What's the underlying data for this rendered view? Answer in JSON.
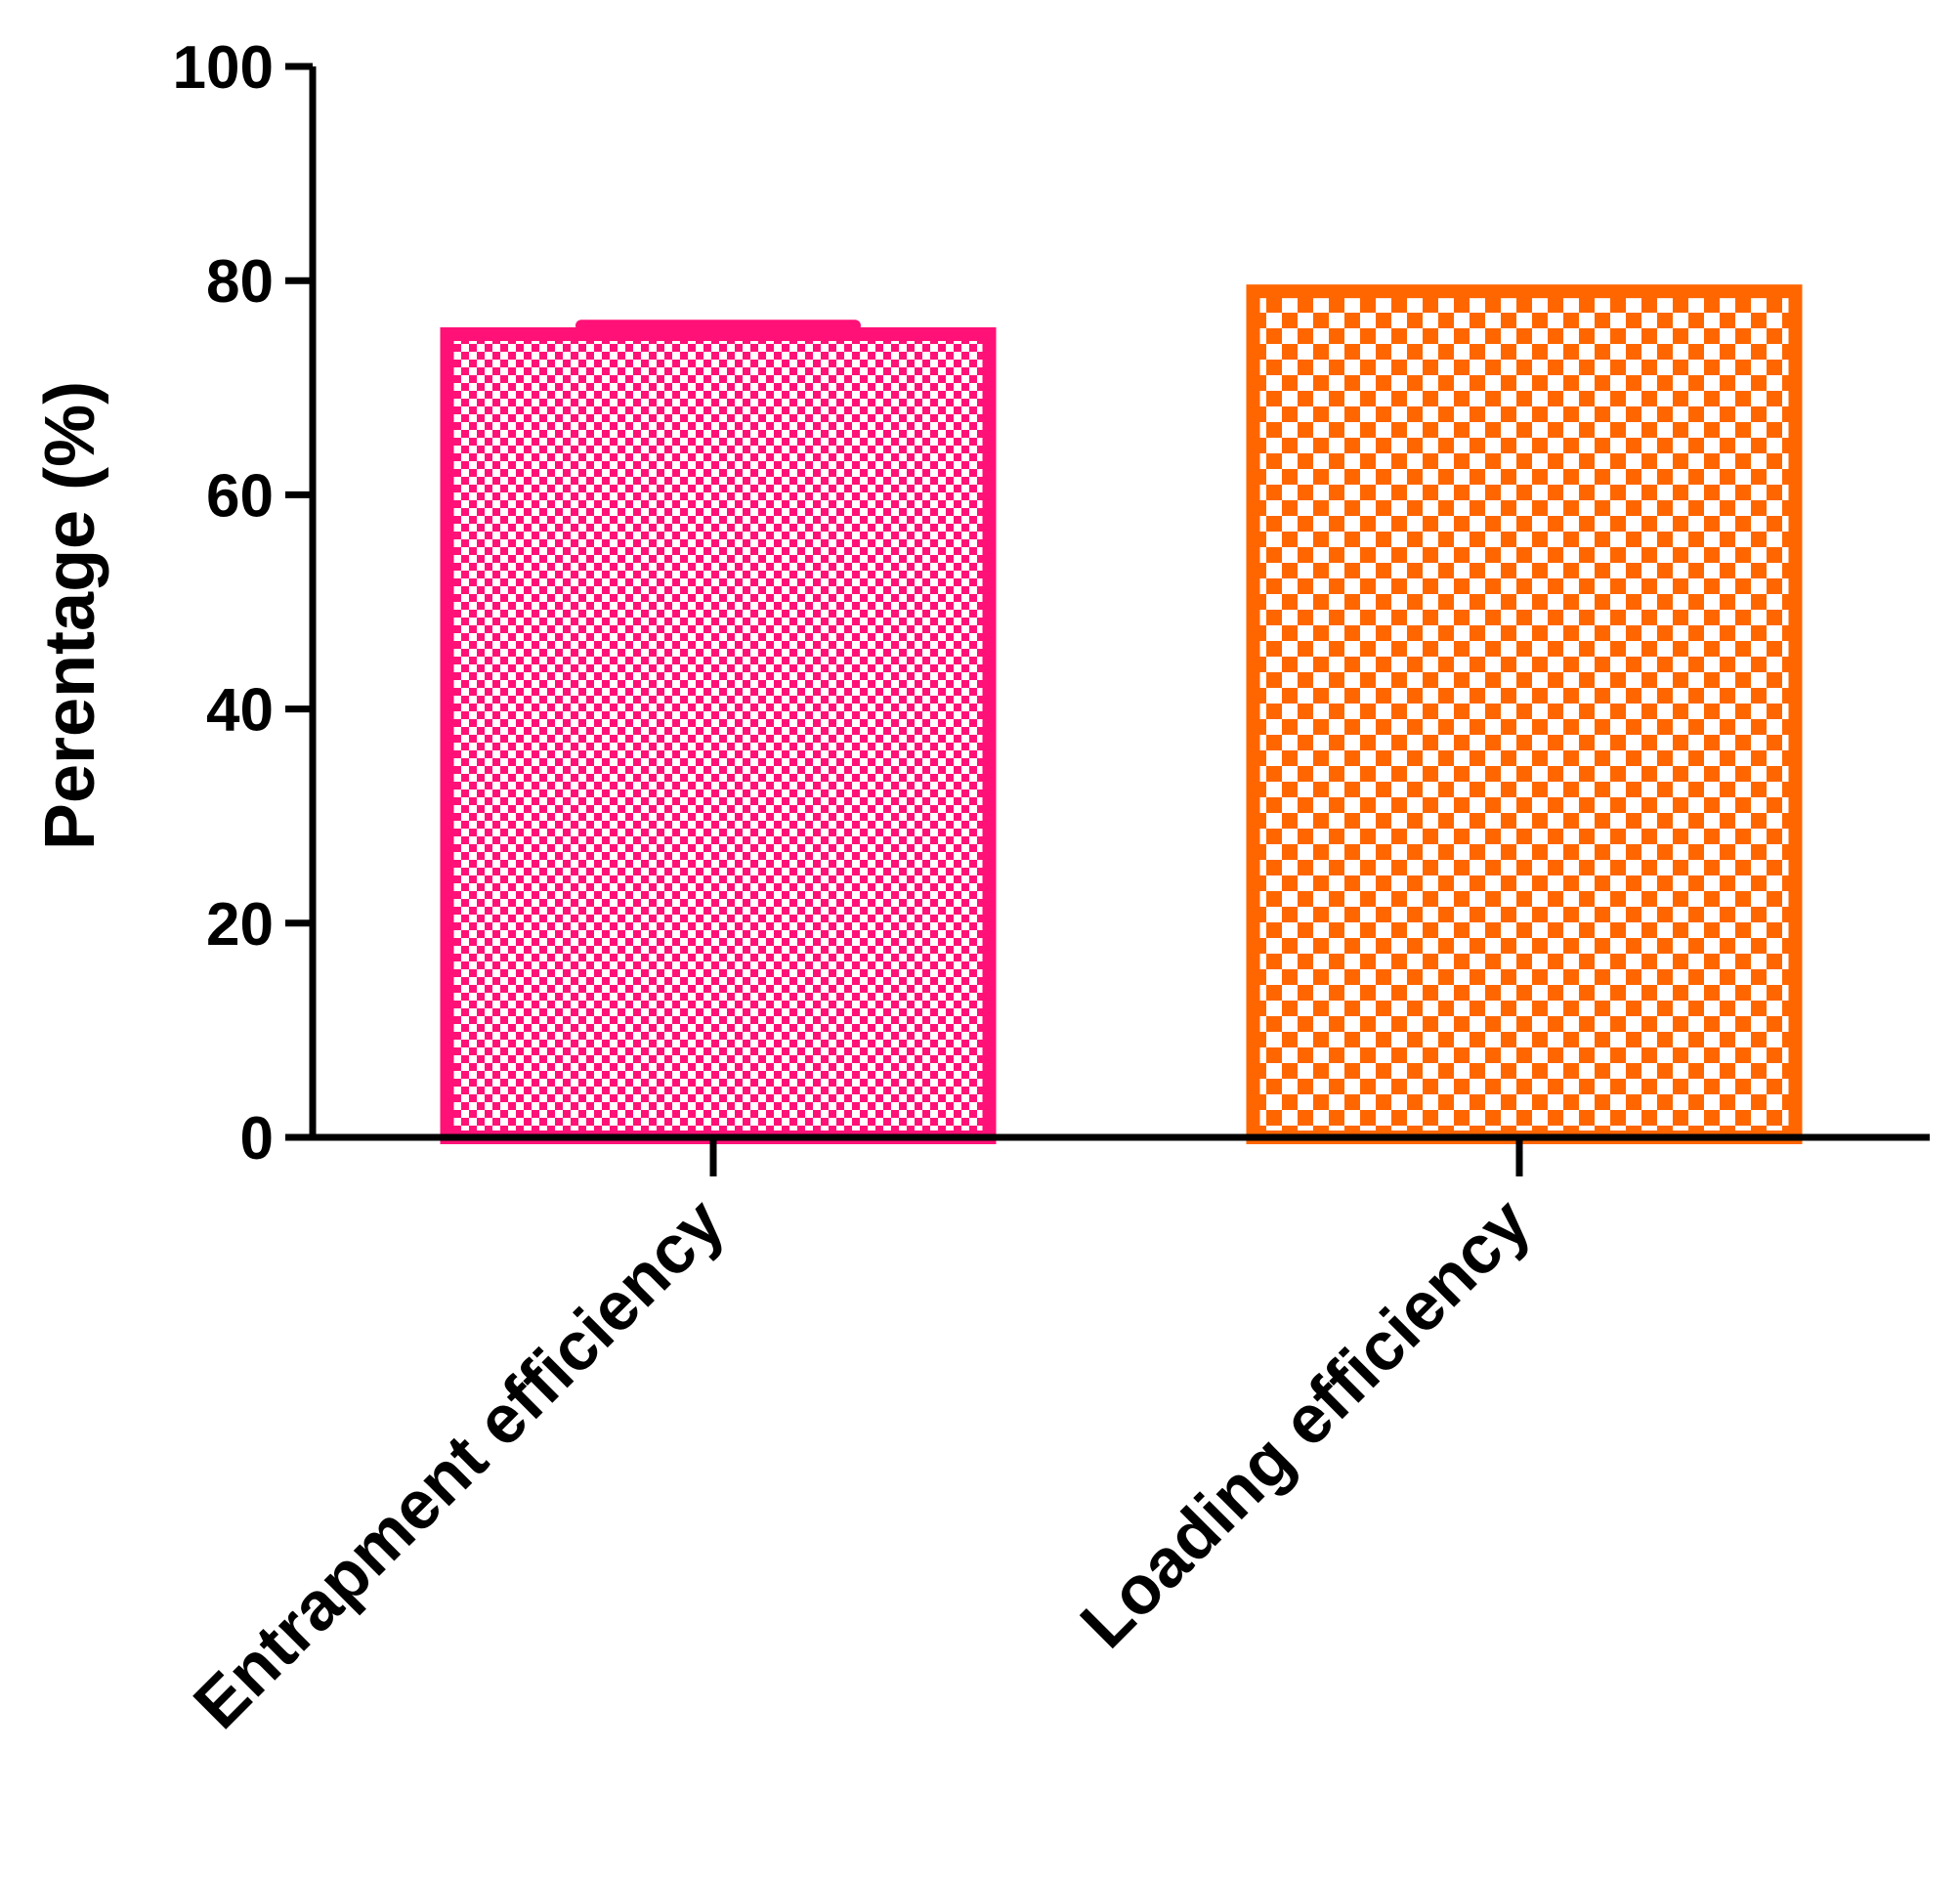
{
  "chart_data": {
    "type": "bar",
    "categories": [
      "Entrapment efficiency",
      "Loading efficiency"
    ],
    "values": [
      75,
      79
    ],
    "error": [
      0.8,
      0
    ],
    "ylabel": "Perentage (%)",
    "ylim": [
      0,
      100
    ],
    "yticks": [
      0,
      20,
      40,
      60,
      80,
      100
    ],
    "grid": false,
    "legend": "none",
    "colors": [
      "#FF1177",
      "#FF6600"
    ],
    "patterns": [
      "fine-checker",
      "coarse-checker"
    ]
  }
}
